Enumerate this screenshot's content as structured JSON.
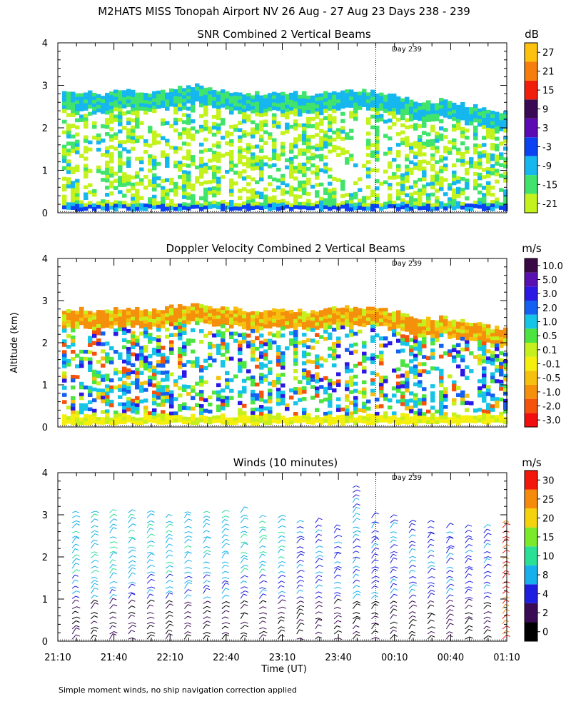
{
  "page": {
    "title": "M2HATS MISS Tonopah Airport NV  26 Aug - 27 Aug 23 Days 238 - 239",
    "footnote": "Simple moment winds, no ship navigation correction applied",
    "ylabel": "Altitude (km)",
    "xlabel": "Time (UT)"
  },
  "chart_data": [
    {
      "type": "heatmap",
      "title": "SNR Combined 2 Vertical Beams",
      "ylim": [
        0,
        4
      ],
      "y_ticks": [
        "0",
        "1",
        "2",
        "3",
        "4"
      ],
      "time_range": [
        "21:10",
        "01:10"
      ],
      "day_marker": {
        "label": "Day 239",
        "time": "00:00"
      },
      "colorbar": {
        "unit": "dB",
        "labels": [
          "-21",
          "-15",
          "-9",
          "-3",
          "3",
          "9",
          "15",
          "21",
          "27"
        ],
        "colors": [
          "#c4f21c",
          "#40e46c",
          "#16b7ee",
          "#0b42f2",
          "#5b0ab4",
          "#3b0a55",
          "#f21e0c",
          "#f57e0c",
          "#fcc20d"
        ]
      },
      "echo_top_km": [
        2.8,
        2.85,
        2.8,
        2.9,
        2.85,
        2.9,
        3.0,
        2.9,
        2.85,
        2.8,
        2.85,
        2.8,
        2.85,
        2.9,
        2.85,
        2.75,
        2.6,
        2.65,
        2.55,
        2.45,
        2.35
      ]
    },
    {
      "type": "heatmap",
      "title": "Doppler Velocity Combined 2 Vertical Beams",
      "ylim": [
        0,
        4
      ],
      "y_ticks": [
        "0",
        "1",
        "2",
        "3",
        "4"
      ],
      "time_range": [
        "21:10",
        "01:10"
      ],
      "day_marker": {
        "label": "Day 239",
        "time": "00:00"
      },
      "colorbar": {
        "unit": "m/s",
        "labels": [
          "-3.0",
          "-2.0",
          "-1.0",
          "-0.5",
          "-0.1",
          "0.1",
          "0.5",
          "1.0",
          "2.0",
          "3.0",
          "5.0",
          "10.0"
        ],
        "colors": [
          "#f20e0e",
          "#f5520c",
          "#f5900d",
          "#f6c10e",
          "#f4ef0d",
          "#c6f01d",
          "#4ce440",
          "#16c5e6",
          "#1460f0",
          "#2c18e4",
          "#5a0fb2",
          "#3a0845"
        ]
      },
      "echo_top_km": [
        2.75,
        2.8,
        2.75,
        2.85,
        2.8,
        2.85,
        2.9,
        2.85,
        2.8,
        2.75,
        2.8,
        2.75,
        2.8,
        2.85,
        2.8,
        2.75,
        2.55,
        2.6,
        2.5,
        2.4,
        2.3
      ]
    },
    {
      "type": "scatter",
      "title": "Winds (10 minutes)",
      "ylim": [
        0,
        4
      ],
      "y_ticks": [
        "0",
        "1",
        "2",
        "3",
        "4"
      ],
      "x_ticks": [
        "21:10",
        "21:40",
        "22:10",
        "22:40",
        "23:10",
        "23:40",
        "00:10",
        "00:40",
        "01:10"
      ],
      "day_marker": {
        "label": "Day 239",
        "time": "00:00"
      },
      "colorbar": {
        "unit": "m/s",
        "labels": [
          "0",
          "2",
          "4",
          "8",
          "10",
          "15",
          "20",
          "25",
          "30"
        ],
        "colors": [
          "#000000",
          "#3a0a55",
          "#1e1ee0",
          "#16b0ec",
          "#2ae096",
          "#7aea2a",
          "#f4d20c",
          "#f58a0c",
          "#f2160c"
        ]
      },
      "profile_times": [
        "21:20",
        "21:30",
        "21:40",
        "21:50",
        "22:00",
        "22:10",
        "22:20",
        "22:30",
        "22:40",
        "22:50",
        "23:00",
        "23:10",
        "23:20",
        "23:30",
        "23:40",
        "23:50",
        "00:00",
        "00:10",
        "00:20",
        "00:30",
        "00:40",
        "00:50",
        "01:00",
        "01:10"
      ],
      "profile_tops_km": [
        3.1,
        3.1,
        3.15,
        3.1,
        3.15,
        3.0,
        3.1,
        3.15,
        3.15,
        3.1,
        3.0,
        2.95,
        2.9,
        2.85,
        2.8,
        3.7,
        3.0,
        2.95,
        2.9,
        2.85,
        2.8,
        2.75,
        2.8,
        2.9
      ]
    }
  ]
}
